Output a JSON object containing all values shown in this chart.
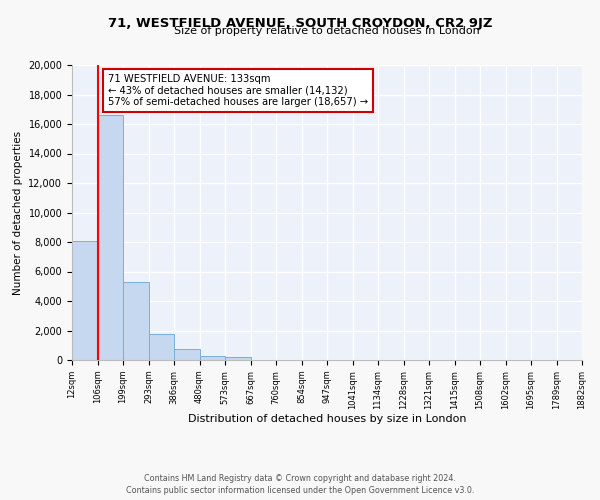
{
  "title": "71, WESTFIELD AVENUE, SOUTH CROYDON, CR2 9JZ",
  "subtitle": "Size of property relative to detached houses in London",
  "xlabel": "Distribution of detached houses by size in London",
  "ylabel": "Number of detached properties",
  "bar_values": [
    8100,
    16600,
    5300,
    1750,
    750,
    280,
    200,
    0,
    0,
    0,
    0,
    0,
    0,
    0,
    0,
    0,
    0,
    0,
    0,
    0
  ],
  "bin_labels": [
    "12sqm",
    "106sqm",
    "199sqm",
    "293sqm",
    "386sqm",
    "480sqm",
    "573sqm",
    "667sqm",
    "760sqm",
    "854sqm",
    "947sqm",
    "1041sqm",
    "1134sqm",
    "1228sqm",
    "1321sqm",
    "1415sqm",
    "1508sqm",
    "1602sqm",
    "1695sqm",
    "1789sqm",
    "1882sqm"
  ],
  "bar_color": "#c5d8f0",
  "bar_edge_color": "#7aaed6",
  "red_line_x": 1,
  "annotation_title": "71 WESTFIELD AVENUE: 133sqm",
  "annotation_line1": "← 43% of detached houses are smaller (14,132)",
  "annotation_line2": "57% of semi-detached houses are larger (18,657) →",
  "annotation_box_color": "#ffffff",
  "annotation_box_edge": "#cc0000",
  "ylim": [
    0,
    20000
  ],
  "yticks": [
    0,
    2000,
    4000,
    6000,
    8000,
    10000,
    12000,
    14000,
    16000,
    18000,
    20000
  ],
  "footer_line1": "Contains HM Land Registry data © Crown copyright and database right 2024.",
  "footer_line2": "Contains public sector information licensed under the Open Government Licence v3.0.",
  "fig_bg_color": "#f8f8f8",
  "plot_bg_color": "#edf2fa",
  "grid_color": "#ffffff"
}
